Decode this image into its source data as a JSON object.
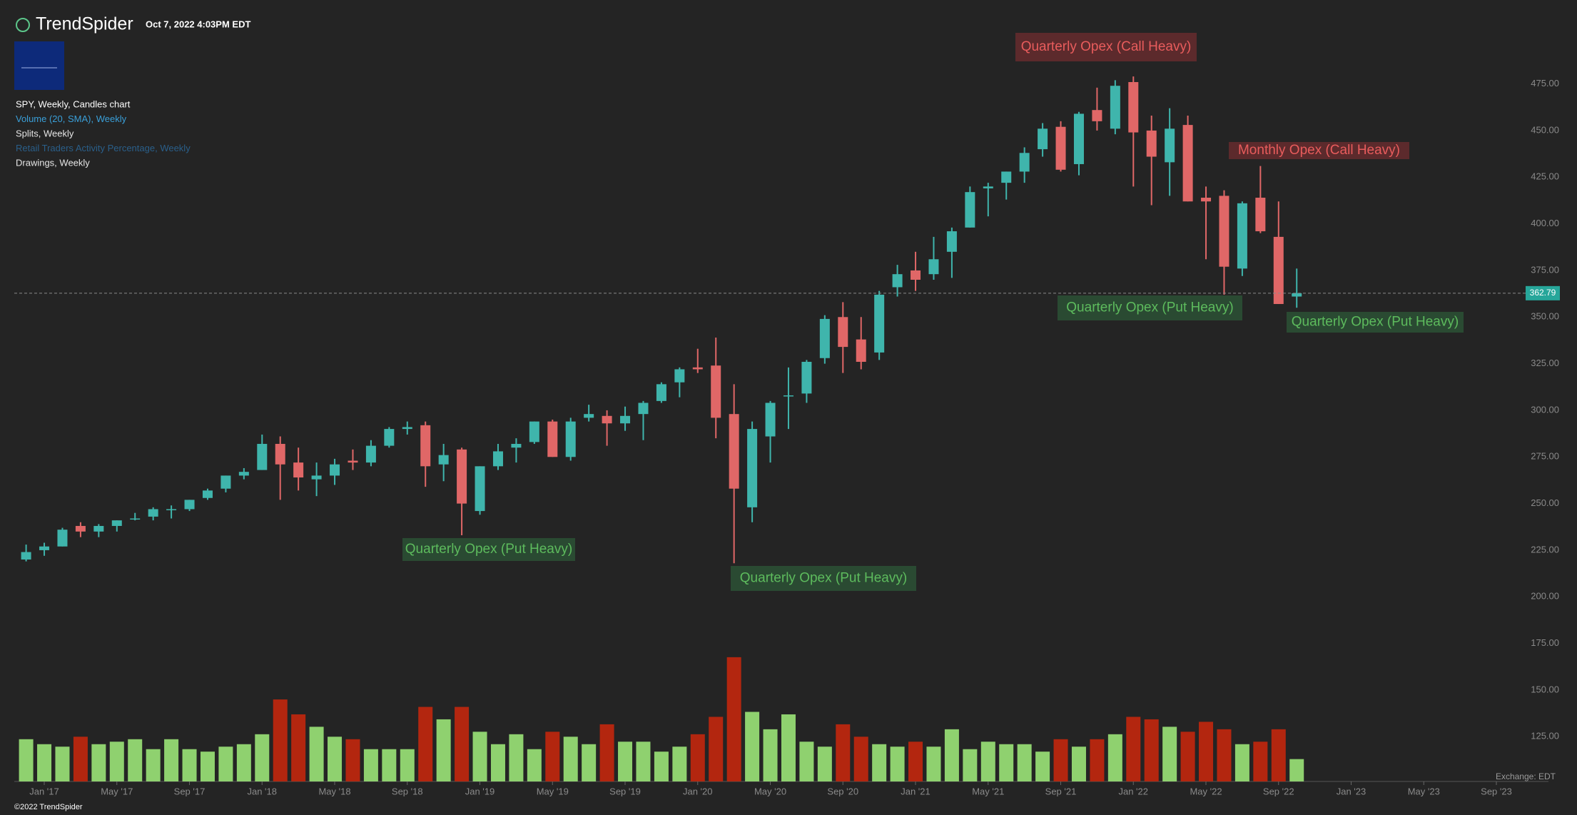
{
  "header": {
    "brand": "TrendSpider",
    "timestamp": "Oct 7, 2022 4:03PM EDT"
  },
  "legend": [
    {
      "text": "SPY, Weekly, Candles chart",
      "color": "#ffffff"
    },
    {
      "text": "Volume (20, SMA), Weekly",
      "color": "#3a9fd8"
    },
    {
      "text": "Splits, Weekly",
      "color": "#e6e6e6"
    },
    {
      "text": "Retail Traders Activity Percentage, Weekly",
      "color": "#2a5f8a"
    },
    {
      "text": "Drawings, Weekly",
      "color": "#e6e6e6"
    }
  ],
  "footer": {
    "copyright": "©2022 TrendSpider",
    "exchange": "Exchange: EDT"
  },
  "chart_data": {
    "type": "candlestick",
    "up_color": "#3fb5ac",
    "down_color": "#e06767",
    "ylim": [
      101,
      520
    ],
    "yticks": [
      {
        "value": 125,
        "label": "125.00"
      },
      {
        "value": 150,
        "label": "150.00"
      },
      {
        "value": 175,
        "label": "175.00"
      },
      {
        "value": 200,
        "label": "200.00"
      },
      {
        "value": 225,
        "label": "225.00"
      },
      {
        "value": 250,
        "label": "250.00"
      },
      {
        "value": 275,
        "label": "275.00"
      },
      {
        "value": 300,
        "label": "300.00"
      },
      {
        "value": 325,
        "label": "325.00"
      },
      {
        "value": 350,
        "label": "350.00"
      },
      {
        "value": 375,
        "label": "375.00"
      },
      {
        "value": 400,
        "label": "400.00"
      },
      {
        "value": 425,
        "label": "425.00"
      },
      {
        "value": 450,
        "label": "450.00"
      },
      {
        "value": 475,
        "label": "475.00"
      }
    ],
    "xticks": [
      "Jan '17",
      "May '17",
      "Sep '17",
      "Jan '18",
      "May '18",
      "Sep '18",
      "Jan '19",
      "May '19",
      "Sep '19",
      "Jan '20",
      "May '20",
      "Sep '20",
      "Jan '21",
      "May '21",
      "Sep '21",
      "Jan '22",
      "May '22",
      "Sep '22",
      "Jan '23",
      "May '23",
      "Sep '23"
    ],
    "last_price": {
      "value": 362.79,
      "label": "362.79",
      "color": "#26a69a"
    },
    "open": [
      220,
      225,
      227,
      238,
      235,
      238,
      242,
      243,
      247,
      247,
      253,
      258,
      265,
      268,
      282,
      272,
      263,
      265,
      273,
      272,
      281,
      290,
      292,
      271,
      279,
      246,
      270,
      280,
      283,
      294,
      275,
      296,
      297,
      293,
      298,
      305,
      315,
      323,
      324,
      298,
      248,
      286,
      308,
      309,
      328,
      350,
      338,
      331,
      366,
      375,
      373,
      385,
      398,
      419,
      422,
      428,
      440,
      452,
      432,
      461,
      451,
      476,
      450,
      433,
      453,
      414,
      415,
      376,
      414,
      393,
      361
    ],
    "high": [
      228,
      229,
      237,
      240,
      239,
      241,
      245,
      248,
      249,
      252,
      258,
      265,
      269,
      287,
      286,
      280,
      272,
      274,
      279,
      284,
      291,
      294,
      294,
      282,
      280,
      270,
      282,
      285,
      294,
      295,
      296,
      303,
      300,
      302,
      305,
      315,
      323,
      333,
      339,
      314,
      294,
      305,
      323,
      327,
      351,
      358,
      350,
      364,
      378,
      385,
      393,
      398,
      420,
      422,
      428,
      441,
      454,
      455,
      460,
      473,
      477,
      479,
      458,
      462,
      458,
      420,
      418,
      412,
      431,
      412,
      376
    ],
    "low": [
      219,
      222,
      227,
      232,
      232,
      235,
      241,
      241,
      242,
      246,
      252,
      256,
      263,
      268,
      252,
      257,
      254,
      260,
      268,
      270,
      280,
      287,
      259,
      262,
      233,
      244,
      268,
      272,
      282,
      275,
      273,
      294,
      281,
      289,
      284,
      304,
      307,
      320,
      285,
      218,
      240,
      272,
      290,
      304,
      325,
      320,
      322,
      327,
      361,
      364,
      370,
      371,
      398,
      404,
      413,
      422,
      436,
      428,
      426,
      450,
      448,
      420,
      410,
      415,
      412,
      381,
      362,
      372,
      395,
      357,
      355
    ],
    "close": [
      224,
      227,
      236,
      235,
      238,
      241,
      242,
      247,
      247,
      252,
      257,
      265,
      267,
      282,
      271,
      264,
      265,
      271,
      272,
      281,
      290,
      291,
      270,
      276,
      250,
      270,
      278,
      282,
      294,
      275,
      294,
      298,
      293,
      297,
      304,
      314,
      322,
      322,
      296,
      258,
      290,
      304,
      308,
      326,
      349,
      334,
      326,
      362,
      373,
      370,
      381,
      396,
      417,
      420,
      428,
      438,
      451,
      429,
      459,
      455,
      474,
      449,
      436,
      451,
      412,
      412,
      377,
      411,
      396,
      357,
      362.79
    ],
    "volume": {
      "ylim": [
        0,
        5600
      ],
      "up_color": "#8fd16f",
      "down_color": "#b3260f",
      "values": [
        1700,
        1500,
        1400,
        1800,
        1500,
        1600,
        1700,
        1300,
        1700,
        1300,
        1200,
        1400,
        1500,
        1900,
        3300,
        2700,
        2200,
        1800,
        1700,
        1300,
        1300,
        1300,
        3000,
        2500,
        3000,
        2000,
        1500,
        1900,
        1300,
        2000,
        1800,
        1500,
        2300,
        1600,
        1600,
        1200,
        1400,
        1900,
        2600,
        5000,
        2800,
        2100,
        2700,
        1600,
        1400,
        2300,
        1800,
        1500,
        1400,
        1600,
        1400,
        2100,
        1300,
        1600,
        1500,
        1500,
        1200,
        1700,
        1400,
        1700,
        1900,
        2600,
        2500,
        2200,
        2000,
        2400,
        2100,
        1500,
        1600,
        2100,
        900
      ]
    },
    "annotations": [
      {
        "text": "Quarterly Opex (Call Heavy)",
        "kind": "call"
      },
      {
        "text": "Monthly Opex (Call Heavy)",
        "kind": "call"
      },
      {
        "text": "Quarterly Opex (Put Heavy)",
        "kind": "put"
      },
      {
        "text": "Quarterly Opex (Put Heavy)",
        "kind": "put"
      },
      {
        "text": "Quarterly Opex (Put Heavy)",
        "kind": "put"
      },
      {
        "text": "Quarterly Opex (Put Heavy)",
        "kind": "put"
      }
    ]
  }
}
